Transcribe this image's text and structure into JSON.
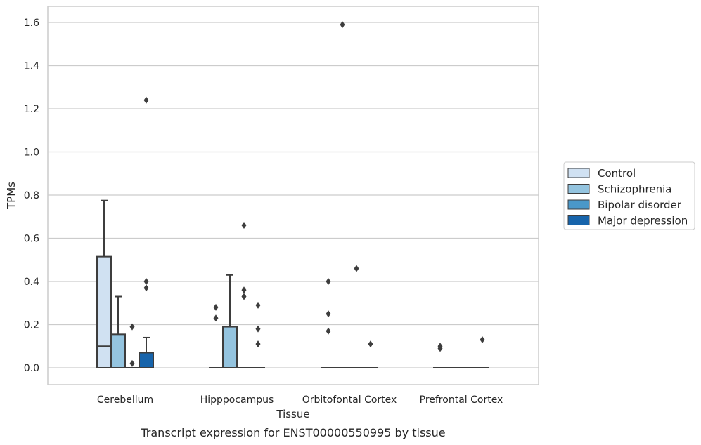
{
  "caption": "Transcript expression for ENST00000550995 by tissue",
  "chart_data": {
    "type": "boxplot",
    "xlabel": "Tissue",
    "ylabel": "TPMs",
    "ylim": [
      -0.08,
      1.67
    ],
    "yticks": [
      "0.0",
      "0.2",
      "0.4",
      "0.6",
      "0.8",
      "1.0",
      "1.2",
      "1.4",
      "1.6"
    ],
    "grid": "horizontal",
    "legend_position": "right",
    "categories": [
      "Cerebellum",
      "Hipppocampus",
      "Orbitofontal Cortex",
      "Prefrontal Cortex"
    ],
    "series": [
      {
        "name": "Control",
        "color": "#d0e1f2",
        "boxes": [
          {
            "q1": 0.0,
            "median": 0.1,
            "q3": 0.515,
            "whisker_low": 0.0,
            "whisker_high": 0.775,
            "outliers": []
          },
          {
            "q1": 0.0,
            "median": 0.0,
            "q3": 0.0,
            "whisker_low": 0.0,
            "whisker_high": 0.0,
            "outliers": [
              0.23,
              0.28
            ]
          },
          {
            "q1": 0.0,
            "median": 0.0,
            "q3": 0.0,
            "whisker_low": 0.0,
            "whisker_high": 0.0,
            "outliers": [
              0.17,
              0.25,
              0.4
            ]
          },
          {
            "q1": 0.0,
            "median": 0.0,
            "q3": 0.0,
            "whisker_low": 0.0,
            "whisker_high": 0.0,
            "outliers": [
              0.09,
              0.1
            ]
          }
        ]
      },
      {
        "name": "Schizophrenia",
        "color": "#94c4df",
        "boxes": [
          {
            "q1": 0.0,
            "median": 0.0,
            "q3": 0.155,
            "whisker_low": 0.0,
            "whisker_high": 0.33,
            "outliers": []
          },
          {
            "q1": 0.0,
            "median": 0.0,
            "q3": 0.19,
            "whisker_low": 0.0,
            "whisker_high": 0.43,
            "outliers": []
          },
          {
            "q1": 0.0,
            "median": 0.0,
            "q3": 0.0,
            "whisker_low": 0.0,
            "whisker_high": 0.0,
            "outliers": [
              1.59
            ]
          },
          {
            "q1": 0.0,
            "median": 0.0,
            "q3": 0.0,
            "whisker_low": 0.0,
            "whisker_high": 0.0,
            "outliers": []
          }
        ]
      },
      {
        "name": "Bipolar disorder",
        "color": "#4a98c9",
        "boxes": [
          {
            "q1": 0.0,
            "median": 0.0,
            "q3": 0.0,
            "whisker_low": 0.0,
            "whisker_high": 0.0,
            "outliers": [
              0.02,
              0.19
            ]
          },
          {
            "q1": 0.0,
            "median": 0.0,
            "q3": 0.0,
            "whisker_low": 0.0,
            "whisker_high": 0.0,
            "outliers": [
              0.33,
              0.36,
              0.66
            ]
          },
          {
            "q1": 0.0,
            "median": 0.0,
            "q3": 0.0,
            "whisker_low": 0.0,
            "whisker_high": 0.0,
            "outliers": [
              0.46
            ]
          },
          {
            "q1": 0.0,
            "median": 0.0,
            "q3": 0.0,
            "whisker_low": 0.0,
            "whisker_high": 0.0,
            "outliers": []
          }
        ]
      },
      {
        "name": "Major depression",
        "color": "#1764ab",
        "boxes": [
          {
            "q1": 0.0,
            "median": 0.0,
            "q3": 0.07,
            "whisker_low": 0.0,
            "whisker_high": 0.14,
            "outliers": [
              0.37,
              0.4,
              1.24
            ]
          },
          {
            "q1": 0.0,
            "median": 0.0,
            "q3": 0.0,
            "whisker_low": 0.0,
            "whisker_high": 0.0,
            "outliers": [
              0.11,
              0.18,
              0.29
            ]
          },
          {
            "q1": 0.0,
            "median": 0.0,
            "q3": 0.0,
            "whisker_low": 0.0,
            "whisker_high": 0.0,
            "outliers": [
              0.11
            ]
          },
          {
            "q1": 0.0,
            "median": 0.0,
            "q3": 0.0,
            "whisker_low": 0.0,
            "whisker_high": 0.0,
            "outliers": [
              0.13
            ]
          }
        ]
      }
    ]
  }
}
